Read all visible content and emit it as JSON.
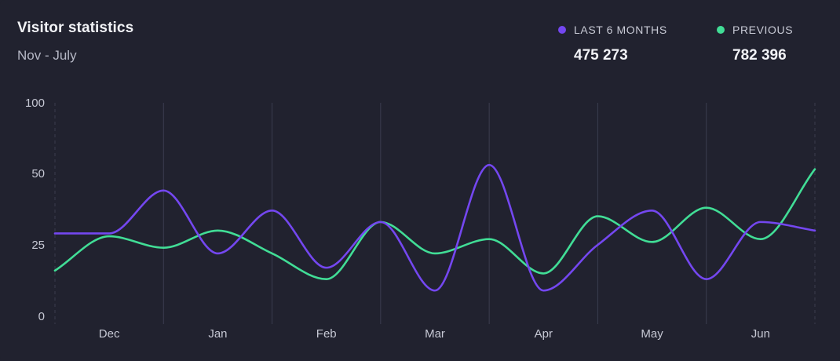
{
  "header": {
    "title": "Visitor statistics",
    "subtitle": "Nov - July"
  },
  "legend": [
    {
      "label": "LAST 6 MONTHS",
      "value": "475 273",
      "color": "#7447f0"
    },
    {
      "label": "PREVIOUS",
      "value": "782 396",
      "color": "#41dd96"
    }
  ],
  "chart_data": {
    "type": "line",
    "x_tick_labels": [
      "Dec",
      "Jan",
      "Feb",
      "Mar",
      "Apr",
      "May",
      "Jun"
    ],
    "y_tick_labels": [
      "0",
      "25",
      "50",
      "100"
    ],
    "grid": true,
    "legend_position": "top-right",
    "series": [
      {
        "name": "LAST 6 MONTHS",
        "color": "#7447f0",
        "values": [
          29,
          29,
          44,
          22,
          37,
          17,
          33,
          9,
          56,
          9,
          25,
          37,
          13,
          33,
          30
        ]
      },
      {
        "name": "PREVIOUS",
        "color": "#41dd96",
        "values": [
          16,
          28,
          24,
          30,
          22,
          13,
          33,
          22,
          27,
          15,
          35,
          26,
          38,
          27,
          53
        ]
      }
    ]
  }
}
